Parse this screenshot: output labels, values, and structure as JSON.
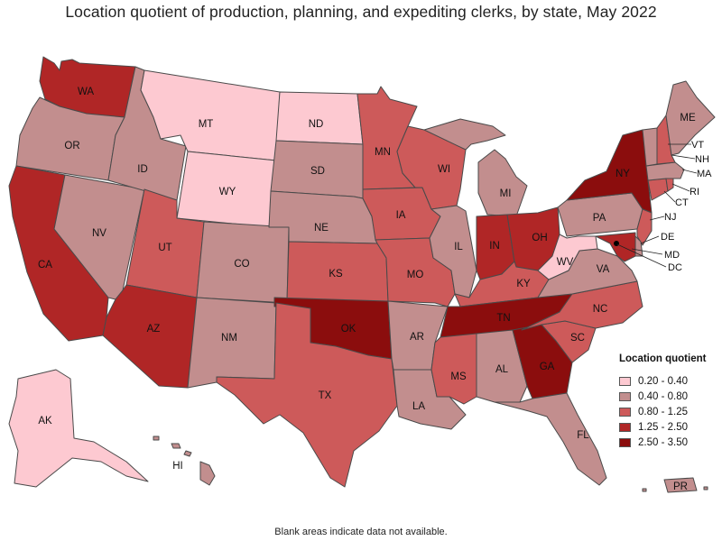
{
  "title": "Location quotient of production, planning, and expediting clerks, by state, May 2022",
  "footnote": "Blank areas indicate data not available.",
  "legend": {
    "title": "Location quotient",
    "items": [
      {
        "label": "0.20 - 0.40",
        "color": "#fdc9d1"
      },
      {
        "label": "0.40 - 0.80",
        "color": "#c28e8e"
      },
      {
        "label": "0.80 - 1.25",
        "color": "#cd5a5a"
      },
      {
        "label": "1.25 - 2.50",
        "color": "#b02626"
      },
      {
        "label": "2.50 - 3.50",
        "color": "#8b0d0d"
      }
    ]
  },
  "states": {
    "WA": {
      "label": "WA",
      "class": 3
    },
    "OR": {
      "label": "OR",
      "class": 1
    },
    "CA": {
      "label": "CA",
      "class": 3
    },
    "NV": {
      "label": "NV",
      "class": 1
    },
    "ID": {
      "label": "ID",
      "class": 1
    },
    "MT": {
      "label": "MT",
      "class": 0
    },
    "WY": {
      "label": "WY",
      "class": 0
    },
    "UT": {
      "label": "UT",
      "class": 2
    },
    "AZ": {
      "label": "AZ",
      "class": 3
    },
    "CO": {
      "label": "CO",
      "class": 1
    },
    "NM": {
      "label": "NM",
      "class": 1
    },
    "ND": {
      "label": "ND",
      "class": 0
    },
    "SD": {
      "label": "SD",
      "class": 1
    },
    "NE": {
      "label": "NE",
      "class": 1
    },
    "KS": {
      "label": "KS",
      "class": 2
    },
    "OK": {
      "label": "OK",
      "class": 4
    },
    "TX": {
      "label": "TX",
      "class": 2
    },
    "MN": {
      "label": "MN",
      "class": 2
    },
    "IA": {
      "label": "IA",
      "class": 2
    },
    "MO": {
      "label": "MO",
      "class": 2
    },
    "AR": {
      "label": "AR",
      "class": 1
    },
    "LA": {
      "label": "LA",
      "class": 1
    },
    "WI": {
      "label": "WI",
      "class": 2
    },
    "IL": {
      "label": "IL",
      "class": 1
    },
    "MI": {
      "label": "MI",
      "class": 1
    },
    "IN": {
      "label": "IN",
      "class": 3
    },
    "OH": {
      "label": "OH",
      "class": 3
    },
    "KY": {
      "label": "KY",
      "class": 2
    },
    "TN": {
      "label": "TN",
      "class": 4
    },
    "MS": {
      "label": "MS",
      "class": 2
    },
    "AL": {
      "label": "AL",
      "class": 1
    },
    "GA": {
      "label": "GA",
      "class": 4
    },
    "FL": {
      "label": "FL",
      "class": 1
    },
    "SC": {
      "label": "SC",
      "class": 2
    },
    "NC": {
      "label": "NC",
      "class": 2
    },
    "VA": {
      "label": "VA",
      "class": 1
    },
    "WV": {
      "label": "WV",
      "class": 0
    },
    "PA": {
      "label": "PA",
      "class": 1
    },
    "NY": {
      "label": "NY",
      "class": 4
    },
    "VT": {
      "label": "VT",
      "class": 1
    },
    "NH": {
      "label": "NH",
      "class": 2
    },
    "ME": {
      "label": "ME",
      "class": 1
    },
    "MA": {
      "label": "MA",
      "class": 1
    },
    "RI": {
      "label": "RI",
      "class": 2
    },
    "CT": {
      "label": "CT",
      "class": 2
    },
    "NJ": {
      "label": "NJ",
      "class": 2
    },
    "DE": {
      "label": "DE",
      "class": 1
    },
    "MD": {
      "label": "MD",
      "class": 3
    },
    "DC": {
      "label": "DC",
      "class": 1
    },
    "AK": {
      "label": "AK",
      "class": 0
    },
    "HI": {
      "label": "HI",
      "class": 1
    },
    "PR": {
      "label": "PR",
      "class": 1
    }
  }
}
